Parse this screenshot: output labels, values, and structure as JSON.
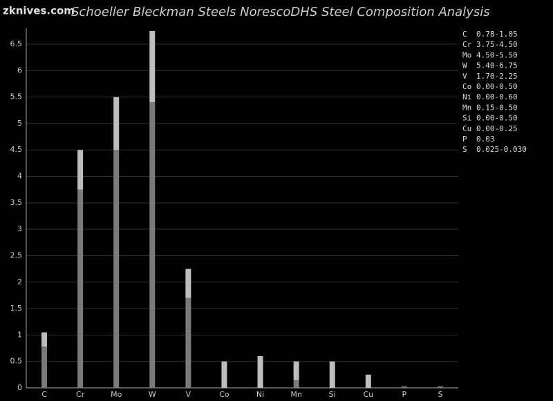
{
  "chart_data": {
    "type": "range_bar",
    "watermark": "zknives.com",
    "title": "Schoeller Bleckman Steels NorescoDHS Steel Composition Analysis",
    "categories": [
      "C",
      "Cr",
      "Mo",
      "W",
      "V",
      "Co",
      "Ni",
      "Mn",
      "Si",
      "Cu",
      "P",
      "S"
    ],
    "series": [
      {
        "color": "#7a7a7a",
        "values": [
          0.78,
          3.75,
          4.5,
          5.4,
          1.7,
          0,
          0,
          0.15,
          0,
          0,
          0.03,
          0.025
        ]
      },
      {
        "color": "#bdbdbd",
        "values": [
          0.27,
          0.75,
          1.0,
          1.35,
          0.55,
          0.5,
          0.6,
          0.35,
          0.5,
          0.25,
          0,
          0.005
        ]
      }
    ],
    "legend_ranges": [
      "0.78-1.05",
      "3.75-4.50",
      "4.50-5.50",
      "5.40-6.75",
      "1.70-2.25",
      "0.00-0.50",
      "0.00-0.60",
      "0.15-0.50",
      "0.00-0.50",
      "0.00-0.25",
      "0.03",
      "0.025-0.030"
    ],
    "ylim": [
      0,
      6.8
    ],
    "yticks": [
      0,
      0.5,
      1,
      1.5,
      2,
      2.5,
      3,
      3.5,
      4,
      4.5,
      5,
      5.5,
      6,
      6.5
    ],
    "grid": true
  }
}
